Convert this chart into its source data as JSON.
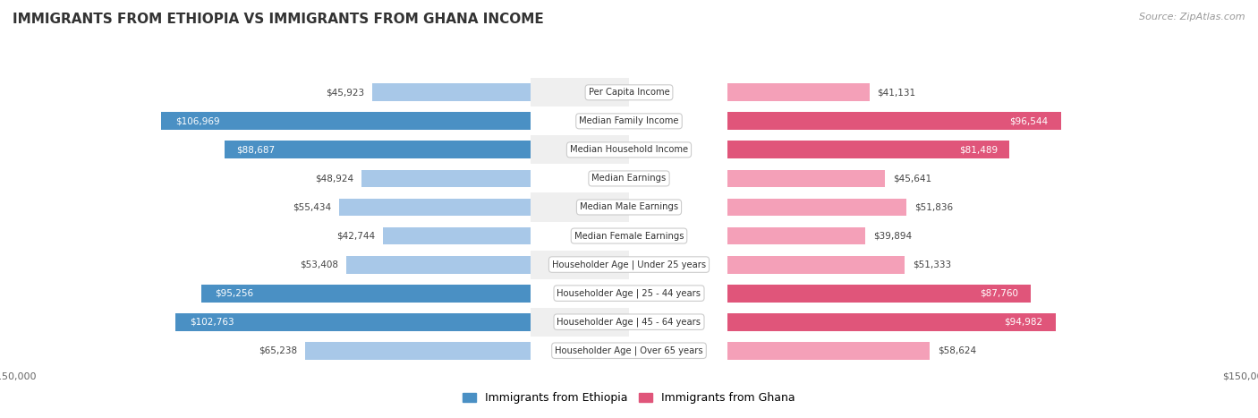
{
  "title": "IMMIGRANTS FROM ETHIOPIA VS IMMIGRANTS FROM GHANA INCOME",
  "source": "Source: ZipAtlas.com",
  "categories": [
    "Per Capita Income",
    "Median Family Income",
    "Median Household Income",
    "Median Earnings",
    "Median Male Earnings",
    "Median Female Earnings",
    "Householder Age | Under 25 years",
    "Householder Age | 25 - 44 years",
    "Householder Age | 45 - 64 years",
    "Householder Age | Over 65 years"
  ],
  "ethiopia_values": [
    45923,
    106969,
    88687,
    48924,
    55434,
    42744,
    53408,
    95256,
    102763,
    65238
  ],
  "ghana_values": [
    41131,
    96544,
    81489,
    45641,
    51836,
    39894,
    51333,
    87760,
    94982,
    58624
  ],
  "ethiopia_color_light": "#a8c8e8",
  "ethiopia_color_dark": "#4a90c4",
  "ghana_color_light": "#f4a0b8",
  "ghana_color_dark": "#e0557a",
  "label_ethiopia": "Immigrants from Ethiopia",
  "label_ghana": "Immigrants from Ghana",
  "x_max": 150000,
  "bar_height": 0.62,
  "background_color": "#ffffff",
  "row_color_odd": "#efefef",
  "row_color_even": "#ffffff",
  "threshold_dark": 80000
}
